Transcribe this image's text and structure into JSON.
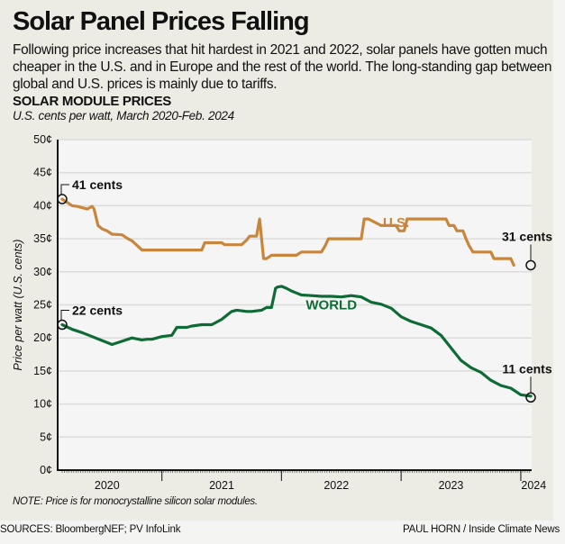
{
  "header": {
    "title": "Solar Panel Prices Falling",
    "dek": "Following price increases that hit hardest in 2021 and 2022, solar panels have gotten much cheaper in the U.S. and in Europe and the rest of the world. The long-standing gap between global and U.S. prices is mainly due to tariffs.",
    "subhead": "SOLAR MODULE PRICES",
    "unit": "U.S. cents per watt, March 2020-Feb. 2024"
  },
  "footer": {
    "note": "NOTE: Price is for monocrystalline silicon solar modules.",
    "sources": "SOURCES: BloombergNEF; PV InfoLink",
    "credit": "PAUL HORN / Inside Climate News"
  },
  "colors": {
    "us": "#c8863c",
    "world": "#0f6b36",
    "grid": "#dcdcda",
    "plot_bg": "#f5f5f5",
    "panel_bg": "#ecebe4"
  },
  "chart_data": {
    "type": "line",
    "title": "SOLAR MODULE PRICES",
    "subtitle": "U.S. cents per watt, March 2020-Feb. 2024",
    "xlabel": "",
    "ylabel": "Price per watt (U.S. cents)",
    "x_unit": "months since March 2020",
    "xlim": [
      -0.5,
      47.5
    ],
    "ylim": [
      0,
      50
    ],
    "y_ticks": [
      0,
      5,
      10,
      15,
      20,
      25,
      30,
      35,
      40,
      45,
      50
    ],
    "y_tick_labels": [
      "0¢",
      "5¢",
      "10¢",
      "15¢",
      "20¢",
      "25¢",
      "30¢",
      "35¢",
      "40¢",
      "45¢",
      "50¢"
    ],
    "x_year_labels": [
      {
        "label": "2020",
        "center": 4.5
      },
      {
        "label": "2021",
        "center": 16
      },
      {
        "label": "2022",
        "center": 27.5
      },
      {
        "label": "2023",
        "center": 39
      },
      {
        "label": "2024",
        "center": 47.3
      }
    ],
    "x_year_boundaries": [
      10,
      22,
      34,
      46
    ],
    "grid": true,
    "series": [
      {
        "name": "U.S.",
        "label": "U.S.",
        "x": [
          0,
          0.5,
          1,
          1.5,
          2,
          2.5,
          3,
          3.2,
          3.6,
          4,
          4.5,
          5,
          6,
          6.6,
          7,
          7.5,
          8,
          9,
          12,
          14,
          14.3,
          15,
          16,
          16.3,
          18,
          18.5,
          18.8,
          19.5,
          19.8,
          20.2,
          20.5,
          21,
          21.5,
          22,
          23,
          23.5,
          24,
          24.3,
          26,
          26.4,
          26.7,
          30,
          30.3,
          30.7,
          32,
          32.3,
          33.5,
          33.8,
          34.3,
          34.6,
          38.5,
          38.8,
          39.3,
          39.6,
          40.2,
          40.5,
          40.8,
          41.2,
          43,
          43.3,
          45,
          45.3
        ],
        "values": [
          41,
          40.5,
          40,
          39.9,
          39.7,
          39.5,
          39.9,
          39.5,
          37,
          36.5,
          36.2,
          35.7,
          35.6,
          35,
          34.7,
          34,
          33.3,
          33.3,
          33.3,
          33.3,
          34.4,
          34.4,
          34.4,
          34.1,
          34.1,
          34.8,
          35.4,
          35.4,
          38,
          32,
          32,
          32.5,
          32.5,
          32.5,
          32.5,
          32.5,
          33,
          33,
          33,
          34,
          35,
          35,
          38,
          38,
          37,
          37,
          37,
          36.2,
          36.2,
          38,
          38,
          37,
          37,
          36.2,
          36.2,
          35,
          34,
          33,
          33,
          32,
          32,
          31
        ]
      },
      {
        "name": "World",
        "label": "WORLD",
        "x": [
          0,
          1,
          2,
          3,
          4,
          5,
          6,
          7,
          8,
          8.5,
          9,
          10,
          11,
          11.5,
          12,
          12.5,
          13,
          14,
          15,
          16,
          17,
          17.5,
          18,
          18.5,
          19,
          20,
          20.5,
          21,
          21.4,
          21.6,
          22,
          22.5,
          23,
          23.5,
          24,
          25,
          26,
          27,
          28,
          29,
          30,
          31,
          32,
          33,
          34,
          35,
          36,
          37,
          38,
          39,
          40,
          41,
          42,
          43,
          44,
          45,
          46,
          47
        ],
        "values": [
          22,
          21.3,
          20.8,
          20.2,
          19.6,
          19,
          19.5,
          20,
          19.7,
          19.8,
          19.8,
          20.2,
          20.4,
          21.6,
          21.6,
          21.6,
          21.8,
          22,
          22,
          22.8,
          24,
          24.2,
          24.1,
          24,
          24,
          24.2,
          24.6,
          24.6,
          27.5,
          27.7,
          27.8,
          27.5,
          27.1,
          26.8,
          26.5,
          26.4,
          26.3,
          26.3,
          26.2,
          26.4,
          26.2,
          25.4,
          25.1,
          24.5,
          23.2,
          22.5,
          22,
          21.5,
          20.4,
          18.5,
          16.6,
          15.5,
          14.8,
          13.6,
          12.8,
          12.4,
          11.4,
          11.2
        ]
      }
    ],
    "annotations": [
      {
        "text": "41 cents",
        "series": "U.S.",
        "x": 0,
        "value": 41
      },
      {
        "text": "22 cents",
        "series": "World",
        "x": 0,
        "value": 22
      },
      {
        "text": "31 cents",
        "series": "U.S.",
        "x": 47,
        "value": 31
      },
      {
        "text": "11 cents",
        "series": "World",
        "x": 47,
        "value": 11
      }
    ]
  }
}
